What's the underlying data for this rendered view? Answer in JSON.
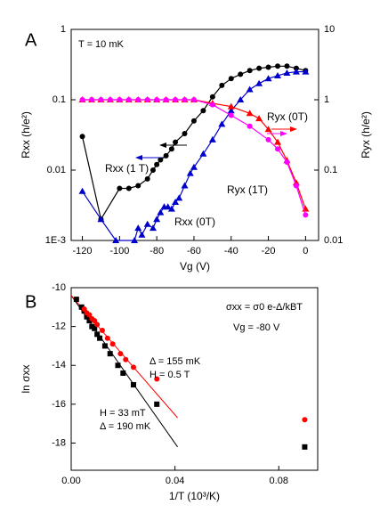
{
  "chart_data": [
    {
      "type": "line",
      "panel_label": "A",
      "xlabel": "Vg (V)",
      "ylabel": "Rxx (h/e²)",
      "y2label": "Ryx (h/e²)",
      "xlim": [
        -126,
        7
      ],
      "xticks": [
        -120,
        -100,
        -80,
        -60,
        -40,
        -20,
        0
      ],
      "ylim": [
        0.001,
        1
      ],
      "ylog": true,
      "yticks": [
        {
          "value": 0.001,
          "label": "1E-3"
        },
        0.01,
        0.1,
        1
      ],
      "y2lim": [
        0.01,
        10
      ],
      "y2log": true,
      "y2ticks": [
        0.01,
        0.1,
        1,
        10
      ],
      "annotations": [
        "T = 10 mK"
      ],
      "series": [
        {
          "name": "Rxx (1 T)",
          "color": "#000000",
          "marker": "circle",
          "x": [
            -120,
            -110,
            -100,
            -95,
            -90,
            -85,
            -82,
            -80,
            -78,
            -75,
            -72,
            -70,
            -65,
            -60,
            -55,
            -50,
            -45,
            -40,
            -35,
            -30,
            -25,
            -20,
            -15,
            -10,
            -5,
            0
          ],
          "values": [
            0.03,
            0.002,
            0.0055,
            0.0055,
            0.006,
            0.0075,
            0.01,
            0.012,
            0.014,
            0.016,
            0.02,
            0.025,
            0.033,
            0.05,
            0.07,
            0.11,
            0.16,
            0.2,
            0.23,
            0.26,
            0.28,
            0.29,
            0.3,
            0.3,
            0.28,
            0.26
          ]
        },
        {
          "name": "Rxx (0T)",
          "color": "#0000cc",
          "marker": "triangle",
          "x": [
            -120,
            -110,
            -102,
            -92,
            -90,
            -88,
            -85,
            -82,
            -80,
            -78,
            -76,
            -74,
            -72,
            -70,
            -68,
            -65,
            -62,
            -60,
            -55,
            -50,
            -45,
            -40,
            -35,
            -30,
            -25,
            -20,
            -15,
            -10,
            -5,
            0
          ],
          "values": [
            0.005,
            0.002,
            0.001,
            0.001,
            0.0015,
            0.0012,
            0.0017,
            0.0015,
            0.002,
            0.0025,
            0.003,
            0.003,
            0.0028,
            0.0035,
            0.004,
            0.006,
            0.009,
            0.011,
            0.017,
            0.027,
            0.045,
            0.07,
            0.1,
            0.14,
            0.17,
            0.2,
            0.22,
            0.24,
            0.25,
            0.25
          ]
        },
        {
          "name": "Ryx (0T)",
          "color": "#ff0000",
          "marker": "triangle",
          "axis": "y2",
          "x": [
            -120,
            -115,
            -110,
            -105,
            -100,
            -95,
            -90,
            -85,
            -80,
            -75,
            -70,
            -65,
            -60,
            -50,
            -40,
            -30,
            -25,
            -20,
            -15,
            -10,
            -5,
            0
          ],
          "values": [
            1,
            1,
            1,
            1,
            1,
            1,
            1,
            1,
            1,
            1,
            1,
            1,
            1,
            0.89,
            0.8,
            0.64,
            0.54,
            0.38,
            0.25,
            0.137,
            0.066,
            0.028
          ]
        },
        {
          "name": "Ryx (1T)",
          "color": "#ff00ff",
          "marker": "circle",
          "axis": "y2",
          "x": [
            -120,
            -115,
            -110,
            -105,
            -100,
            -95,
            -90,
            -85,
            -80,
            -75,
            -70,
            -65,
            -60,
            -50,
            -40,
            -30,
            -20,
            -15,
            -10,
            -5,
            0
          ],
          "values": [
            1,
            1,
            1,
            1,
            1,
            1,
            1,
            1,
            1,
            1,
            1,
            1,
            1,
            0.85,
            0.6,
            0.42,
            0.27,
            0.2,
            0.13,
            0.06,
            0.023
          ]
        }
      ]
    },
    {
      "type": "scatter",
      "panel_label": "B",
      "xlabel": "1/T (10³/K)",
      "ylabel": "ln σxx",
      "xlim": [
        0,
        0.095
      ],
      "xticks": [
        {
          "value": 0,
          "label": "0.00"
        },
        0.04,
        0.08
      ],
      "ylim": [
        -19.4,
        -10
      ],
      "yticks": [
        -10,
        -12,
        -14,
        -16,
        -18
      ],
      "annotations": [
        "σxx = σ0 e-Δ/kBT",
        "Vg = -80 V",
        "Δ = 155 mK",
        "H = 0.5 T",
        "H = 33 mT",
        "Δ = 190 mK"
      ],
      "series": [
        {
          "color": "#000000",
          "marker": "square",
          "x": [
            0.002,
            0.004,
            0.005,
            0.006,
            0.007,
            0.008,
            0.009,
            0.01,
            0.011,
            0.013,
            0.015,
            0.018,
            0.02,
            0.024,
            0.033,
            0.09
          ],
          "values": [
            -10.6,
            -11,
            -11.2,
            -11.5,
            -11.7,
            -12,
            -12.1,
            -12.4,
            -12.6,
            -13,
            -13.4,
            -14,
            -14.4,
            -15,
            -16,
            -18.2
          ]
        },
        {
          "color": "#ff0000",
          "marker": "circle",
          "x": [
            0.005,
            0.006,
            0.007,
            0.008,
            0.009,
            0.01,
            0.012,
            0.014,
            0.016,
            0.019,
            0.021,
            0.024,
            0.033,
            0.09
          ],
          "values": [
            -11.1,
            -11.3,
            -11.4,
            -11.6,
            -11.7,
            -11.9,
            -12.2,
            -12.6,
            -12.9,
            -13.4,
            -13.7,
            -14.1,
            -14.7,
            -16.8
          ]
        }
      ],
      "fits": [
        {
          "color": "#000000",
          "x": [
            0,
            0.041
          ],
          "values": [
            -10.4,
            -18.2
          ]
        },
        {
          "color": "#ff0000",
          "x": [
            0,
            0.041
          ],
          "values": [
            -10.4,
            -16.7
          ]
        }
      ]
    }
  ]
}
